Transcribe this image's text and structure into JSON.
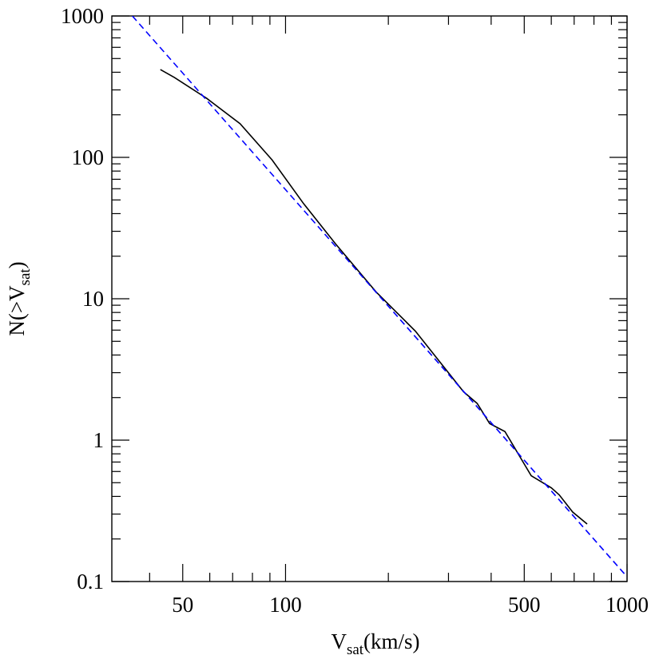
{
  "chart_data": {
    "type": "line",
    "xlabel_parts": [
      "V",
      "sat",
      "(km/s)"
    ],
    "ylabel_parts": [
      "N(>V",
      "sat",
      ")"
    ],
    "xscale": "log",
    "yscale": "log",
    "xlim": [
      31,
      1000
    ],
    "ylim": [
      0.1,
      1000
    ],
    "xticks": [
      50,
      100,
      500,
      1000
    ],
    "yticks": [
      0.1,
      1,
      10,
      100,
      1000
    ],
    "xminorticks": [
      40,
      60,
      70,
      80,
      90,
      200,
      300,
      400,
      600,
      700,
      800,
      900
    ],
    "yminorticks": [
      0.2,
      0.3,
      0.4,
      0.5,
      0.6,
      0.7,
      0.8,
      0.9,
      2,
      3,
      4,
      5,
      6,
      7,
      8,
      9,
      20,
      30,
      40,
      50,
      60,
      70,
      80,
      90,
      200,
      300,
      400,
      500,
      600,
      700,
      800,
      900
    ],
    "series": [
      {
        "color": "#000000",
        "dash": false,
        "x": [
          43,
          47.3,
          58.7,
          73.6,
          91.3,
          113,
          140,
          184,
          240,
          332,
          364,
          396,
          439,
          524,
          600,
          633,
          693,
          764
        ],
        "values": [
          418,
          367,
          262,
          173,
          96,
          47,
          24.5,
          11.2,
          5.9,
          2.2,
          1.82,
          1.31,
          1.15,
          0.56,
          0.46,
          0.41,
          0.31,
          0.255
        ]
      },
      {
        "color": "#0000ff",
        "dash": true,
        "x": [
          35.6,
          1000
        ],
        "values": [
          1000,
          0.108
        ]
      }
    ]
  }
}
